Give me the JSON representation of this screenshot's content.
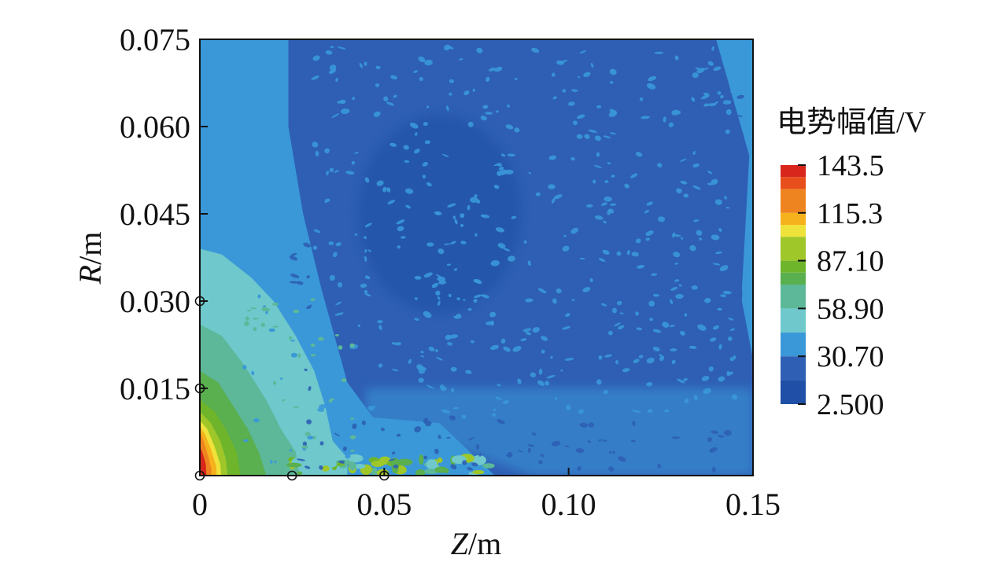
{
  "chart_data": {
    "type": "heatmap",
    "title": "",
    "xlabel_var": "Z",
    "xlabel_unit": "/m",
    "ylabel_var": "R",
    "ylabel_unit": "/m",
    "xlim": [
      0,
      0.15
    ],
    "ylim": [
      0,
      0.075
    ],
    "x_ticks": [
      {
        "value": 0,
        "label": "0"
      },
      {
        "value": 0.05,
        "label": "0.05"
      },
      {
        "value": 0.1,
        "label": "0.10"
      },
      {
        "value": 0.15,
        "label": "0.15"
      }
    ],
    "y_ticks": [
      {
        "value": 0.015,
        "label": "0.015"
      },
      {
        "value": 0.03,
        "label": "0.030"
      },
      {
        "value": 0.045,
        "label": "0.045"
      },
      {
        "value": 0.06,
        "label": "0.060"
      },
      {
        "value": 0.075,
        "label": "0.075"
      }
    ],
    "colorbar": {
      "title": "电势幅值/V",
      "min": 2.5,
      "max": 143.5,
      "labels": [
        "143.5",
        "115.3",
        "87.10",
        "58.90",
        "30.70",
        "2.500"
      ],
      "levels": [
        {
          "from": 2.5,
          "to": 16.6,
          "color": "#1f4fa6"
        },
        {
          "from": 16.6,
          "to": 30.7,
          "color": "#2e5fb4"
        },
        {
          "from": 30.7,
          "to": 44.8,
          "color": "#3a98d8"
        },
        {
          "from": 44.8,
          "to": 58.9,
          "color": "#6ec8cc"
        },
        {
          "from": 58.9,
          "to": 73.0,
          "color": "#5cb898"
        },
        {
          "from": 73.0,
          "to": 80.05,
          "color": "#5aaf4e"
        },
        {
          "from": 80.05,
          "to": 87.1,
          "color": "#6fb52c"
        },
        {
          "from": 87.1,
          "to": 101.2,
          "color": "#9fc72a"
        },
        {
          "from": 101.2,
          "to": 108.25,
          "color": "#efe23a"
        },
        {
          "from": 108.25,
          "to": 115.3,
          "color": "#f5b21d"
        },
        {
          "from": 115.3,
          "to": 129.4,
          "color": "#ee8420"
        },
        {
          "from": 129.4,
          "to": 136.45,
          "color": "#e84e1b"
        },
        {
          "from": 136.45,
          "to": 143.5,
          "color": "#d8261c"
        }
      ]
    },
    "markers": [
      {
        "z": 0.0,
        "r": 0.0
      },
      {
        "z": 0.0,
        "r": 0.015
      },
      {
        "z": 0.0,
        "r": 0.03
      },
      {
        "z": 0.025,
        "r": 0.0
      },
      {
        "z": 0.05,
        "r": 0.0
      }
    ],
    "regions": [
      {
        "name": "background",
        "value": 35
      },
      {
        "name": "low-potential-lobe",
        "value": 20,
        "center_z": 0.07,
        "center_r": 0.045
      },
      {
        "name": "inner-core",
        "value": 8,
        "center_z": 0.065,
        "center_r": 0.045
      },
      {
        "name": "near-axis-plume",
        "value": 50,
        "z_extent": 0.04,
        "r_extent": 0.039
      },
      {
        "name": "near-source-green",
        "value": 80,
        "z_extent": 0.02,
        "r_extent": 0.026
      },
      {
        "name": "near-source-hot",
        "value": 135,
        "z_extent": 0.006,
        "r_extent": 0.01
      },
      {
        "name": "axis-strip",
        "value": 75,
        "z_from": 0.025,
        "z_to": 0.08,
        "r_extent": 0.003
      }
    ]
  }
}
